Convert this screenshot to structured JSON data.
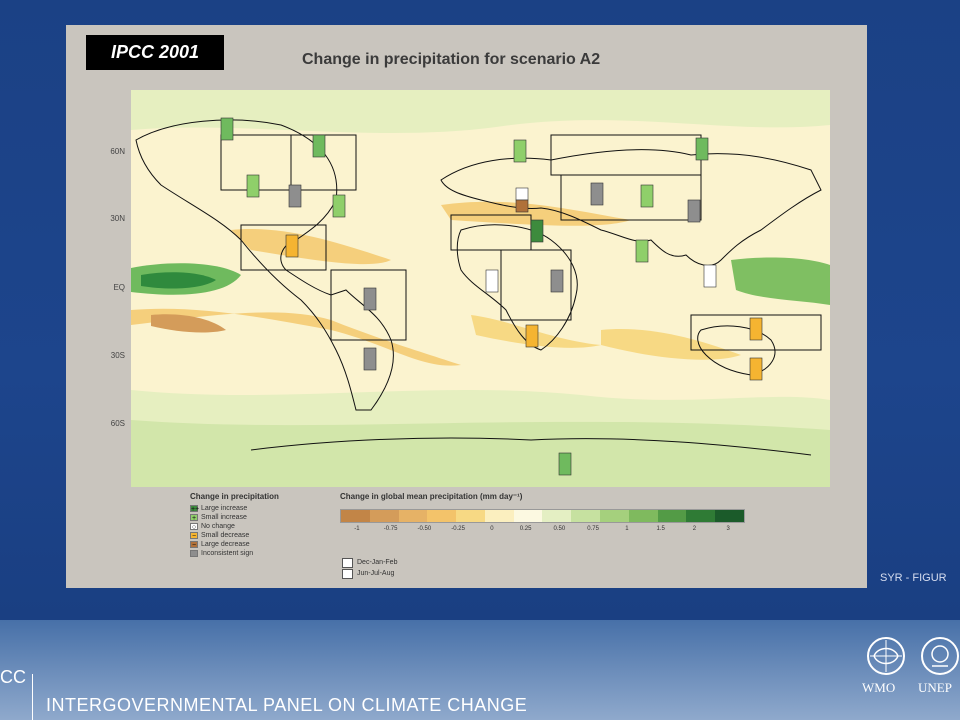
{
  "badge": "IPCC 2001",
  "title": "Change in precipitation for scenario A2",
  "latitudes": [
    "60N",
    "30N",
    "EQ",
    "30S",
    "60S"
  ],
  "legend_categories": {
    "title": "Change in precipitation",
    "items": [
      {
        "label": "Large increase",
        "color": "#3d8b3d",
        "symbol": "++"
      },
      {
        "label": "Small increase",
        "color": "#8fcf6a",
        "symbol": "+"
      },
      {
        "label": "No change",
        "color": "#ffffff",
        "symbol": "○"
      },
      {
        "label": "Small decrease",
        "color": "#f5b431",
        "symbol": "−"
      },
      {
        "label": "Large decrease",
        "color": "#b0713a",
        "symbol": "− −"
      },
      {
        "label": "Inconsistent sign",
        "color": "#8e8e8e",
        "symbol": ""
      }
    ]
  },
  "legend_scale": {
    "title": "Change in global mean precipitation (mm day⁻¹)",
    "colors": [
      "#c28547",
      "#d49c5a",
      "#e6b266",
      "#f3c36a",
      "#f7d984",
      "#fbefbf",
      "#fcf9e1",
      "#e4efc3",
      "#c6e1a0",
      "#a5d07d",
      "#7fba5e",
      "#539b46",
      "#2f7b35",
      "#1b5b2a"
    ],
    "ticks": [
      "-1",
      "-0.75",
      "-0.50",
      "-0.25",
      "0",
      "0.25",
      "0.50",
      "0.75",
      "1",
      "1.5",
      "2",
      "3"
    ]
  },
  "season_legend": [
    "Dec-Jan-Feb",
    "Jun-Jul-Aug"
  ],
  "syr_label": "SYR - FIGUR",
  "footer": {
    "acronym": "CC",
    "name": "INTERGOVERNMENTAL PANEL ON CLIMATE CHANGE",
    "logos": [
      "WMO",
      "UNEP"
    ]
  }
}
